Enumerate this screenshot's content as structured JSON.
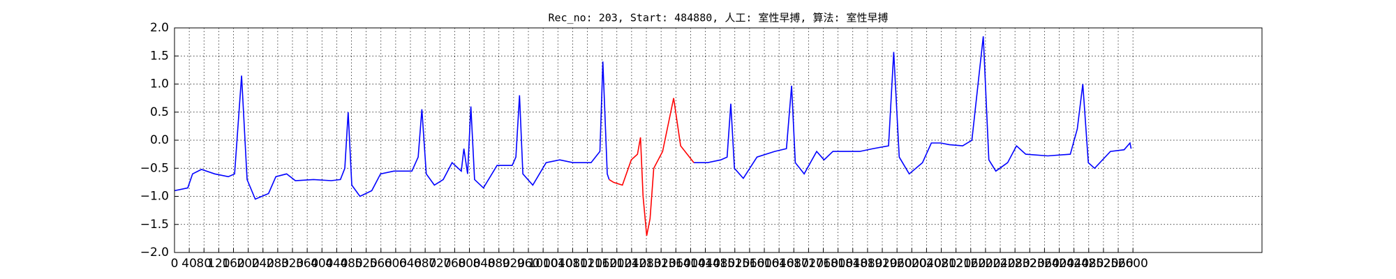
{
  "chart_data": {
    "type": "line",
    "title": "Rec_no: 203, Start: 484880, 人工: 室性早搏, 算法: 室性早搏",
    "x": [
      0,
      36,
      49,
      73,
      109,
      146,
      163,
      182,
      197,
      219,
      255,
      275,
      304,
      328,
      377,
      425,
      450,
      462,
      471,
      481,
      503,
      535,
      559,
      595,
      644,
      661,
      671,
      683,
      705,
      729,
      753,
      778,
      785,
      795,
      804,
      814,
      838,
      875,
      916,
      926,
      936,
      945,
      972,
      1008,
      1045,
      1081,
      1130,
      1154,
      1162,
      1174,
      1179,
      1191,
      1215,
      1239,
      1256,
      1264,
      1271,
      1281,
      1290,
      1300,
      1324,
      1354,
      1373,
      1409,
      1446,
      1482,
      1499,
      1509,
      1519,
      1543,
      1580,
      1628,
      1660,
      1674,
      1684,
      1708,
      1742,
      1762,
      1786,
      1859,
      1895,
      1937,
      1951,
      1966,
      1993,
      2029,
      2053,
      2078,
      2102,
      2138,
      2163,
      2194,
      2209,
      2228,
      2260,
      2284,
      2309,
      2369,
      2430,
      2449,
      2464,
      2479,
      2496,
      2539,
      2576,
      2592,
      2595
    ],
    "series": [
      {
        "color": "#0000ff",
        "values": [
          -0.9,
          -0.85,
          -0.6,
          -0.52,
          -0.6,
          -0.65,
          -0.6,
          1.15,
          -0.7,
          -1.05,
          -0.95,
          -0.65,
          -0.6,
          -0.72,
          -0.7,
          -0.72,
          -0.7,
          -0.5,
          0.5,
          -0.8,
          -1.0,
          -0.9,
          -0.6,
          -0.55,
          -0.55,
          -0.3,
          0.55,
          -0.6,
          -0.8,
          -0.7,
          -0.4,
          -0.55,
          -0.15,
          -0.6,
          0.6,
          -0.7,
          -0.85,
          -0.45,
          -0.45,
          -0.3,
          0.8,
          -0.6,
          -0.8,
          -0.4,
          -0.35,
          -0.4,
          -0.4,
          -0.2,
          1.4,
          -0.6,
          -0.7,
          null,
          null,
          null,
          null,
          null,
          null,
          null,
          null,
          null,
          null,
          null,
          null,
          -0.4,
          -0.4,
          -0.35,
          -0.3,
          0.65,
          -0.5,
          -0.68,
          -0.3,
          -0.2,
          -0.15,
          0.97,
          -0.4,
          -0.6,
          -0.2,
          -0.35,
          -0.2,
          -0.2,
          -0.15,
          -0.1,
          1.57,
          -0.3,
          -0.6,
          -0.4,
          -0.05,
          -0.05,
          -0.08,
          -0.1,
          0.0,
          1.85,
          -0.35,
          -0.55,
          -0.4,
          -0.1,
          -0.25,
          -0.28,
          -0.25,
          0.2,
          1.0,
          -0.4,
          -0.5,
          -0.2,
          -0.17,
          -0.05,
          -0.15
        ]
      },
      {
        "color": "#ff0000",
        "values": [
          null,
          null,
          null,
          null,
          null,
          null,
          null,
          null,
          null,
          null,
          null,
          null,
          null,
          null,
          null,
          null,
          null,
          null,
          null,
          null,
          null,
          null,
          null,
          null,
          null,
          null,
          null,
          null,
          null,
          null,
          null,
          null,
          null,
          null,
          null,
          null,
          null,
          null,
          null,
          null,
          null,
          null,
          null,
          null,
          null,
          null,
          null,
          null,
          null,
          null,
          -0.7,
          -0.75,
          -0.8,
          -0.35,
          -0.25,
          0.05,
          -1.0,
          -1.7,
          -1.4,
          -0.5,
          -0.2,
          0.75,
          -0.1,
          -0.4,
          null,
          null,
          null,
          null,
          null,
          null,
          null,
          null,
          null,
          null,
          null,
          null,
          null,
          null,
          null,
          null,
          null,
          null,
          null,
          null,
          null,
          null,
          null,
          null,
          null,
          null,
          null,
          null,
          null,
          null,
          null,
          null,
          null,
          null,
          null,
          null,
          null,
          null,
          null,
          null,
          null,
          null,
          null
        ]
      }
    ],
    "xlim": [
      0,
      2950
    ],
    "xticks": [
      0,
      40,
      80,
      120,
      160,
      200,
      240,
      280,
      320,
      360,
      400,
      440,
      480,
      520,
      560,
      600,
      640,
      680,
      720,
      760,
      800,
      840,
      880,
      920,
      960,
      1000,
      1040,
      1080,
      1120,
      1160,
      1200,
      1240,
      1280,
      1320,
      1360,
      1400,
      1440,
      1480,
      1520,
      1560,
      1600,
      1640,
      1680,
      1720,
      1760,
      1800,
      1840,
      1880,
      1920,
      1960,
      2000,
      2040,
      2080,
      2120,
      2160,
      2200,
      2240,
      2280,
      2320,
      2360,
      2400,
      2440,
      2480,
      2520,
      2560,
      2600
    ],
    "ylim": [
      -2,
      2
    ],
    "yticks": [
      {
        "value": -2,
        "label": "−2.0"
      },
      {
        "value": -1.5,
        "label": "−1.5"
      },
      {
        "value": -1,
        "label": "−1.0"
      },
      {
        "value": -0.5,
        "label": "−0.5"
      },
      {
        "value": 0,
        "label": "0.0"
      },
      {
        "value": 0.5,
        "label": "0.5"
      },
      {
        "value": 1,
        "label": "1.0"
      },
      {
        "value": 1.5,
        "label": "1.5"
      },
      {
        "value": 2,
        "label": "2.0"
      }
    ],
    "grid": true
  }
}
